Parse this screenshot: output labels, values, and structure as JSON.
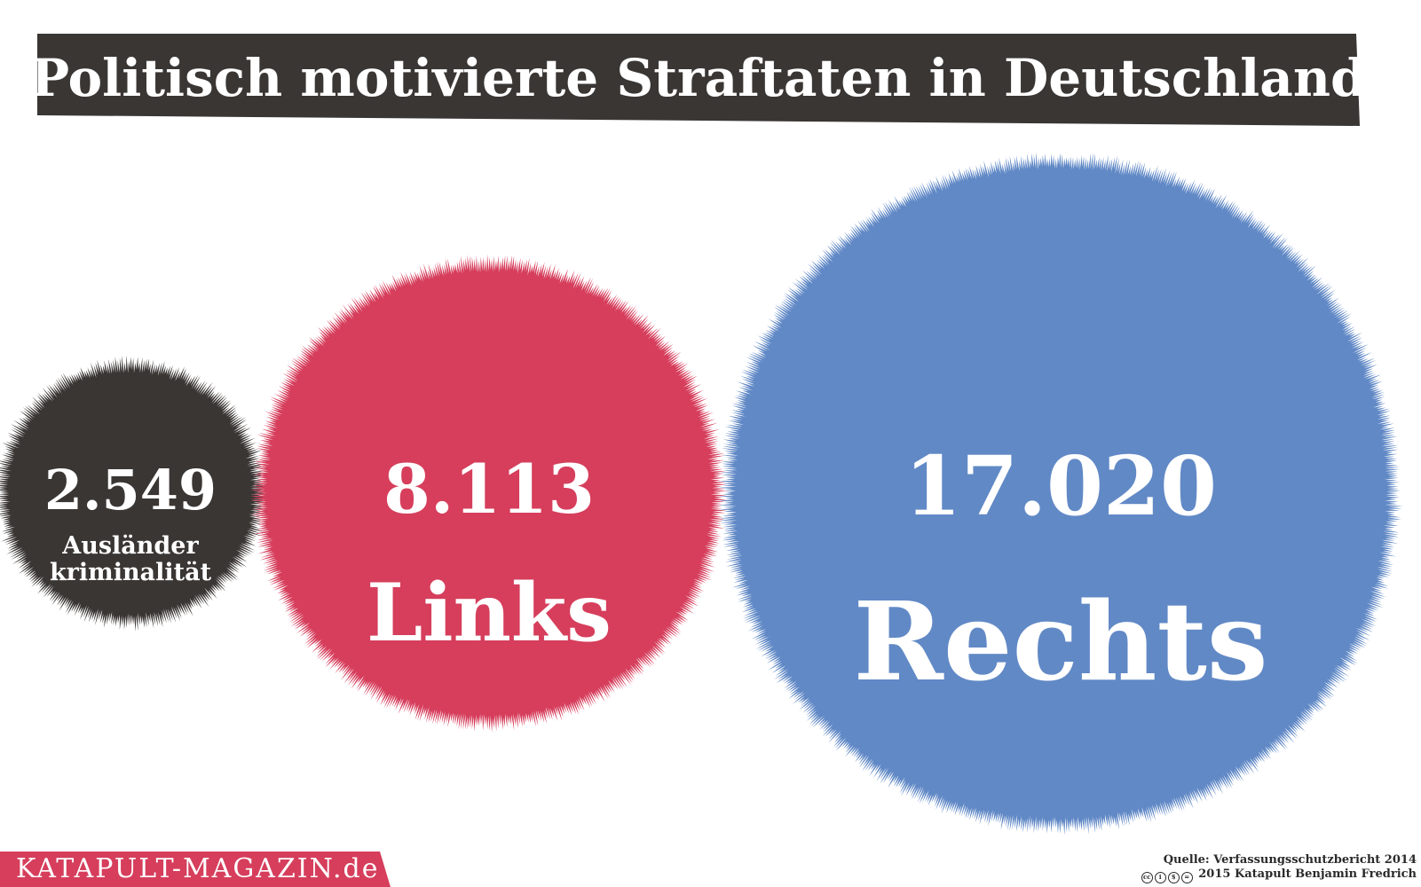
{
  "header": {
    "title": "Politisch motivierte Straftaten in Deutschland"
  },
  "chart_data": {
    "type": "bubble",
    "title": "Politisch motivierte Straftaten in Deutschland",
    "series": [
      {
        "name": "Ausländerkriminalität",
        "value": 2549,
        "value_label": "2.549",
        "label_lines": [
          "Ausländer",
          "kriminalität"
        ],
        "color": "#3a3634"
      },
      {
        "name": "Links",
        "value": 8113,
        "value_label": "8.113",
        "label_lines": [
          "Links"
        ],
        "color": "#d63e5c"
      },
      {
        "name": "Rechts",
        "value": 17020,
        "value_label": "17.020",
        "label_lines": [
          "Rechts"
        ],
        "color": "#6189c6"
      }
    ]
  },
  "footer": {
    "brand": "KATAPULT-MAGAZIN.de",
    "brand_color": "#d63e5c",
    "source": "Quelle: Verfassungsschutzbericht 2014",
    "copyright": "2015 Katapult Benjamin Fredrich",
    "license_icons": [
      "cc-icon",
      "by-icon",
      "nc-icon",
      "nd-icon"
    ]
  }
}
